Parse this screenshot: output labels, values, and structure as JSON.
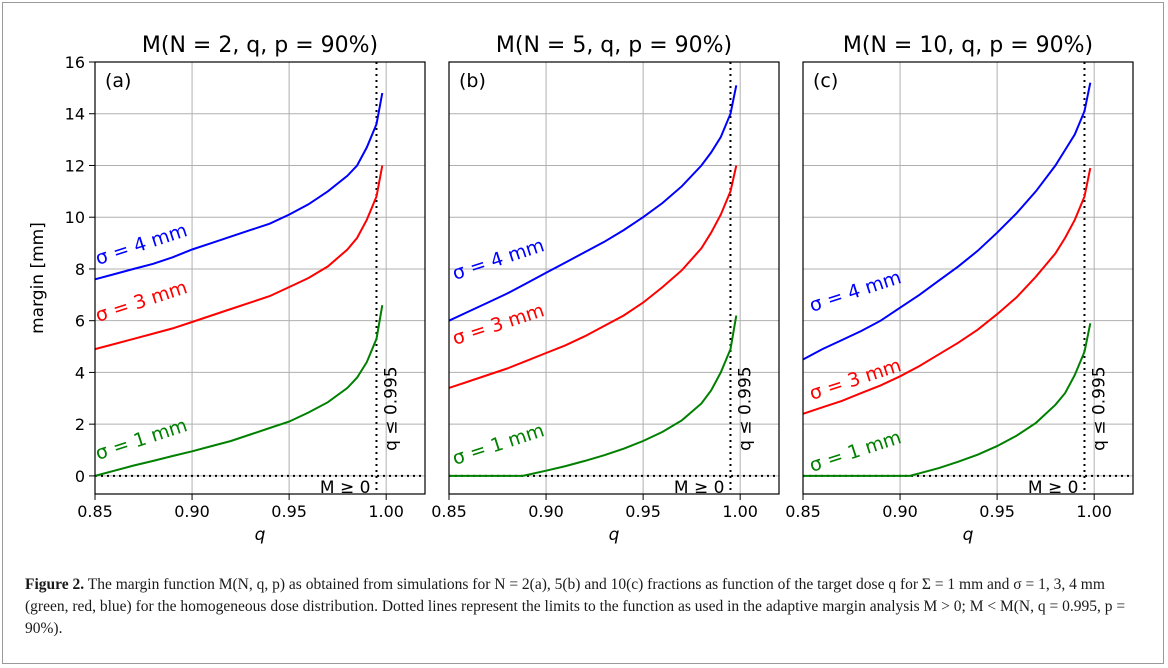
{
  "chart_data": [
    {
      "type": "line",
      "title": "M(N = 2, q, p = 90%)",
      "panel_letter": "(a)",
      "xlabel": "q",
      "ylabel": "margin [mm]",
      "xlim": [
        0.85,
        1.02
      ],
      "ylim": [
        -0.7,
        16
      ],
      "xticks": [
        "0.85",
        "0.90",
        "0.95",
        "1.00"
      ],
      "yticks": [
        "0",
        "2",
        "4",
        "6",
        "8",
        "10",
        "12",
        "14",
        "16"
      ],
      "grid": true,
      "series": [
        {
          "name": "σ = 4 mm",
          "color": "#0000ff",
          "x": [
            0.85,
            0.86,
            0.87,
            0.88,
            0.89,
            0.9,
            0.91,
            0.92,
            0.93,
            0.94,
            0.95,
            0.96,
            0.97,
            0.98,
            0.985,
            0.99,
            0.995,
            0.998
          ],
          "y": [
            7.6,
            7.8,
            8.0,
            8.2,
            8.45,
            8.75,
            9.0,
            9.25,
            9.5,
            9.75,
            10.1,
            10.5,
            11.0,
            11.6,
            12.0,
            12.7,
            13.6,
            14.8
          ]
        },
        {
          "name": "σ = 3 mm",
          "color": "#ff0000",
          "x": [
            0.85,
            0.86,
            0.87,
            0.88,
            0.89,
            0.9,
            0.91,
            0.92,
            0.93,
            0.94,
            0.95,
            0.96,
            0.97,
            0.98,
            0.985,
            0.99,
            0.995,
            0.998
          ],
          "y": [
            4.9,
            5.1,
            5.3,
            5.5,
            5.7,
            5.95,
            6.2,
            6.45,
            6.7,
            6.95,
            7.3,
            7.65,
            8.1,
            8.75,
            9.2,
            9.9,
            10.8,
            12.0
          ]
        },
        {
          "name": "σ = 1 mm",
          "color": "#008000",
          "x": [
            0.85,
            0.86,
            0.87,
            0.88,
            0.89,
            0.9,
            0.91,
            0.92,
            0.93,
            0.94,
            0.95,
            0.96,
            0.97,
            0.98,
            0.985,
            0.99,
            0.995,
            0.998
          ],
          "y": [
            0.0,
            0.2,
            0.4,
            0.58,
            0.77,
            0.95,
            1.15,
            1.35,
            1.6,
            1.85,
            2.1,
            2.45,
            2.85,
            3.4,
            3.8,
            4.4,
            5.3,
            6.6
          ]
        }
      ],
      "hlines": [
        {
          "y": 0,
          "style": "dotted",
          "label": "M ≥ 0"
        }
      ],
      "vlines": [
        {
          "x": 0.995,
          "style": "dotted",
          "label": "q ≤ 0.995"
        }
      ]
    },
    {
      "type": "line",
      "title": "M(N = 5, q, p = 90%)",
      "panel_letter": "(b)",
      "xlabel": "q",
      "ylabel": "",
      "xlim": [
        0.85,
        1.02
      ],
      "ylim": [
        -0.7,
        16
      ],
      "xticks": [
        "0.85",
        "0.90",
        "0.95",
        "1.00"
      ],
      "yticks": [],
      "grid": true,
      "series": [
        {
          "name": "σ = 4 mm",
          "color": "#0000ff",
          "x": [
            0.85,
            0.86,
            0.87,
            0.88,
            0.89,
            0.9,
            0.91,
            0.92,
            0.93,
            0.94,
            0.95,
            0.96,
            0.97,
            0.98,
            0.985,
            0.99,
            0.995,
            0.998
          ],
          "y": [
            6.0,
            6.35,
            6.7,
            7.05,
            7.45,
            7.85,
            8.25,
            8.65,
            9.05,
            9.5,
            10.0,
            10.55,
            11.2,
            12.0,
            12.5,
            13.1,
            14.0,
            15.1
          ]
        },
        {
          "name": "σ = 3 mm",
          "color": "#ff0000",
          "x": [
            0.85,
            0.86,
            0.87,
            0.88,
            0.89,
            0.9,
            0.91,
            0.92,
            0.93,
            0.94,
            0.95,
            0.96,
            0.97,
            0.98,
            0.985,
            0.99,
            0.995,
            0.998
          ],
          "y": [
            3.4,
            3.65,
            3.9,
            4.15,
            4.45,
            4.75,
            5.05,
            5.4,
            5.8,
            6.2,
            6.7,
            7.3,
            7.95,
            8.8,
            9.4,
            10.1,
            11.0,
            12.0
          ]
        },
        {
          "name": "σ = 1 mm",
          "color": "#008000",
          "x": [
            0.85,
            0.87,
            0.888,
            0.9,
            0.91,
            0.92,
            0.93,
            0.94,
            0.95,
            0.96,
            0.97,
            0.98,
            0.985,
            0.99,
            0.995,
            0.998
          ],
          "y": [
            0.0,
            0.0,
            0.0,
            0.2,
            0.38,
            0.58,
            0.8,
            1.05,
            1.35,
            1.7,
            2.15,
            2.8,
            3.3,
            4.0,
            4.9,
            6.2
          ]
        }
      ],
      "hlines": [
        {
          "y": 0,
          "style": "dotted",
          "label": "M ≥ 0"
        }
      ],
      "vlines": [
        {
          "x": 0.995,
          "style": "dotted",
          "label": "q ≤ 0.995"
        }
      ]
    },
    {
      "type": "line",
      "title": "M(N = 10, q, p = 90%)",
      "panel_letter": "(c)",
      "xlabel": "q",
      "ylabel": "",
      "xlim": [
        0.85,
        1.02
      ],
      "ylim": [
        -0.7,
        16
      ],
      "xticks": [
        "0.85",
        "0.90",
        "0.95",
        "1.00"
      ],
      "yticks": [],
      "grid": true,
      "series": [
        {
          "name": "σ = 4 mm",
          "color": "#0000ff",
          "x": [
            0.85,
            0.86,
            0.87,
            0.88,
            0.89,
            0.9,
            0.91,
            0.92,
            0.93,
            0.94,
            0.95,
            0.96,
            0.97,
            0.98,
            0.985,
            0.99,
            0.995,
            0.998
          ],
          "y": [
            4.5,
            4.9,
            5.25,
            5.6,
            6.0,
            6.5,
            7.0,
            7.55,
            8.1,
            8.7,
            9.4,
            10.15,
            11.0,
            12.0,
            12.6,
            13.2,
            14.1,
            15.2
          ]
        },
        {
          "name": "σ = 3 mm",
          "color": "#ff0000",
          "x": [
            0.85,
            0.86,
            0.87,
            0.88,
            0.89,
            0.9,
            0.91,
            0.92,
            0.93,
            0.94,
            0.95,
            0.96,
            0.97,
            0.98,
            0.985,
            0.99,
            0.995,
            0.998
          ],
          "y": [
            2.4,
            2.65,
            2.9,
            3.2,
            3.5,
            3.85,
            4.25,
            4.7,
            5.15,
            5.65,
            6.25,
            6.9,
            7.7,
            8.6,
            9.2,
            9.9,
            10.8,
            11.9
          ]
        },
        {
          "name": "σ = 1 mm",
          "color": "#008000",
          "x": [
            0.85,
            0.88,
            0.905,
            0.91,
            0.92,
            0.93,
            0.94,
            0.95,
            0.96,
            0.97,
            0.98,
            0.985,
            0.99,
            0.995,
            0.998
          ],
          "y": [
            0.0,
            0.0,
            0.0,
            0.1,
            0.3,
            0.55,
            0.82,
            1.15,
            1.55,
            2.05,
            2.75,
            3.2,
            3.9,
            4.8,
            5.9
          ]
        }
      ],
      "hlines": [
        {
          "y": 0,
          "style": "dotted",
          "label": "M ≥ 0"
        }
      ],
      "vlines": [
        {
          "x": 0.995,
          "style": "dotted",
          "label": "q ≤ 0.995"
        }
      ]
    }
  ],
  "caption": {
    "label": "Figure 2.",
    "text": "The margin function M(N, q, p) as obtained from simulations for N = 2(a), 5(b) and 10(c) fractions as function of the target dose q for Σ = 1 mm and σ = 1, 3, 4 mm (green, red, blue) for the homogeneous dose distribution. Dotted lines represent the limits to the function as used in the adaptive margin analysis M > 0; M < M(N, q = 0.995, p = 90%)."
  }
}
